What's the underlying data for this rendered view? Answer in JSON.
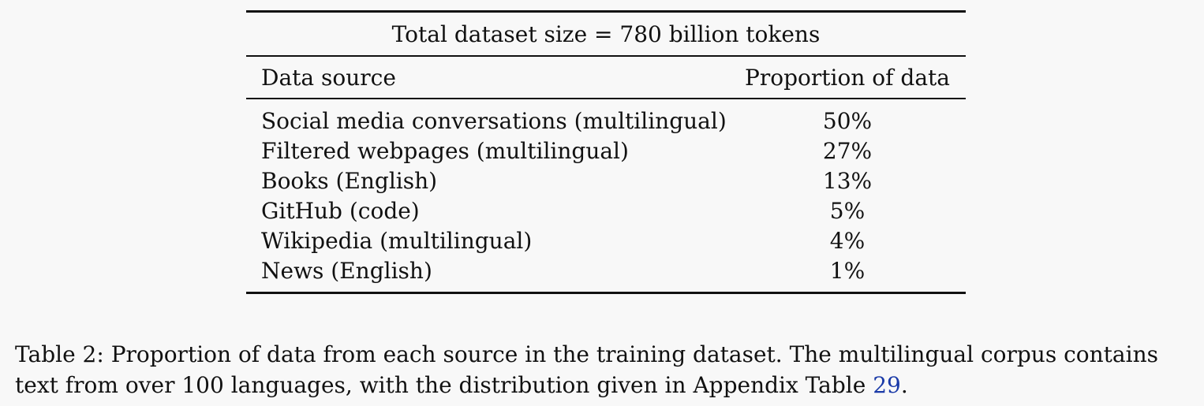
{
  "table": {
    "title": "Total dataset size = 780 billion tokens",
    "columns": [
      "Data source",
      "Proportion of data"
    ],
    "rows": [
      {
        "source": "Social media conversations (multilingual)",
        "proportion": "50%"
      },
      {
        "source": "Filtered webpages (multilingual)",
        "proportion": "27%"
      },
      {
        "source": "Books (English)",
        "proportion": "13%"
      },
      {
        "source": "GitHub (code)",
        "proportion": "5%"
      },
      {
        "source": "Wikipedia (multilingual)",
        "proportion": "4%"
      },
      {
        "source": "News (English)",
        "proportion": "1%"
      }
    ]
  },
  "caption": {
    "text": "Table 2: Proportion of data from each source in the training dataset. The multilingual corpus contains text from over 100 languages, with the distribution given in Appendix Table ",
    "ref": "29",
    "end": "."
  },
  "colors": {
    "text": "#111111",
    "link": "#1a3aa8",
    "background": "#f8f8f8"
  }
}
